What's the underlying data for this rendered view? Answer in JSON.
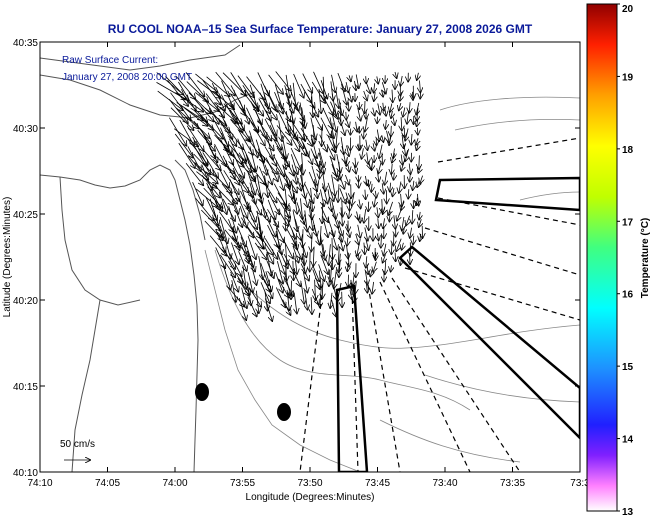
{
  "chart_data": {
    "type": "map",
    "title": "RU COOL  NOAA–15  Sea Surface Temperature:  January 27, 2008 2026 GMT",
    "annotation_line1": "Raw Surface Current:",
    "annotation_line2": "January 27, 2008 20:00 GMT",
    "xlabel": "Longitude (Degrees:Minutes)",
    "ylabel": "Latitude (Degrees:Minutes)",
    "x_ticks": [
      "74:10",
      "74:05",
      "74:00",
      "73:55",
      "73:50",
      "73:45",
      "73:40",
      "73:35",
      "73:3"
    ],
    "y_ticks": [
      "40:35",
      "40:30",
      "40:25",
      "40:20",
      "40:15",
      "40:10"
    ],
    "xlim_minutes_west": [
      10,
      -30
    ],
    "ylim_minutes_north": [
      10,
      35
    ],
    "colorbar": {
      "label": "Temperature (°C)",
      "range": [
        13,
        20
      ],
      "ticks": [
        "20",
        "19",
        "18",
        "17",
        "16",
        "15",
        "14",
        "13"
      ]
    },
    "scale_label": "50 cm/s",
    "colors": {
      "title": "#0a1a9a",
      "axis": "#000000",
      "contour": "#888888"
    }
  }
}
